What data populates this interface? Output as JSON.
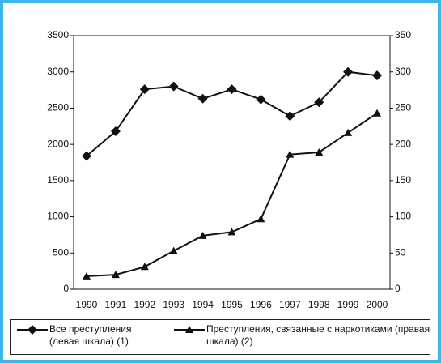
{
  "chart_data": {
    "type": "line",
    "categories": [
      "1990",
      "1991",
      "1992",
      "1993",
      "1994",
      "1995",
      "1996",
      "1997",
      "1998",
      "1999",
      "2000"
    ],
    "series": [
      {
        "name": "Все преступления (левая шкала) (1)",
        "color": "#111111",
        "marker": "diamond",
        "values": [
          1840,
          2180,
          2760,
          2800,
          2630,
          2760,
          2620,
          2390,
          2580,
          3000,
          2950
        ]
      },
      {
        "name": "Преступления, связанные с наркотиками (правая шкала) (2)",
        "color": "#111111",
        "marker": "triangle",
        "axis": "y2",
        "values": [
          18,
          20,
          31,
          53,
          74,
          79,
          97,
          186,
          189,
          216,
          243
        ]
      }
    ],
    "ylim": [
      0,
      3500
    ],
    "yticks": [
      0,
      500,
      1000,
      1500,
      2000,
      2500,
      3000,
      3500
    ],
    "y2lim": [
      0,
      350
    ],
    "y2ticks": [
      0,
      50,
      100,
      150,
      200,
      250,
      300,
      350
    ]
  }
}
